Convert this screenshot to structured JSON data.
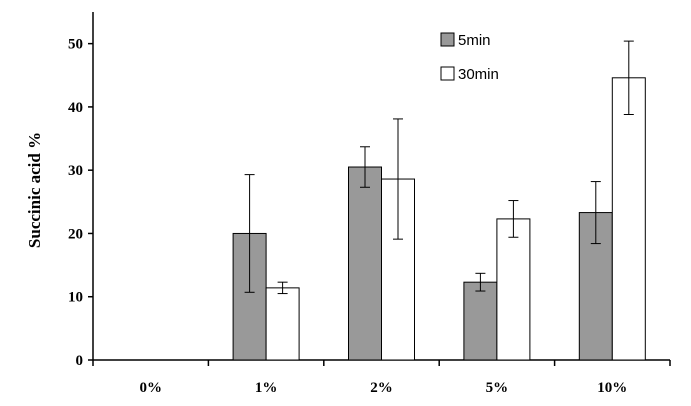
{
  "chart_data": {
    "type": "bar",
    "title": "",
    "xlabel": "",
    "ylabel": "Succinic acid %",
    "categories": [
      "0%",
      "1%",
      "2%",
      "5%",
      "10%"
    ],
    "ylim": [
      0,
      55
    ],
    "yticks": [
      0,
      10,
      20,
      30,
      40,
      50
    ],
    "grid": false,
    "legend_position": "top-right",
    "series": [
      {
        "name": "5min",
        "color": "#999999",
        "values": [
          0,
          20.0,
          30.5,
          12.3,
          23.3
        ],
        "errors": [
          0,
          9.3,
          3.2,
          1.4,
          4.9
        ]
      },
      {
        "name": "30min",
        "color": "#ffffff",
        "values": [
          0,
          11.4,
          28.6,
          22.3,
          44.6
        ],
        "errors": [
          0,
          0.9,
          9.5,
          2.9,
          5.8
        ]
      }
    ]
  }
}
